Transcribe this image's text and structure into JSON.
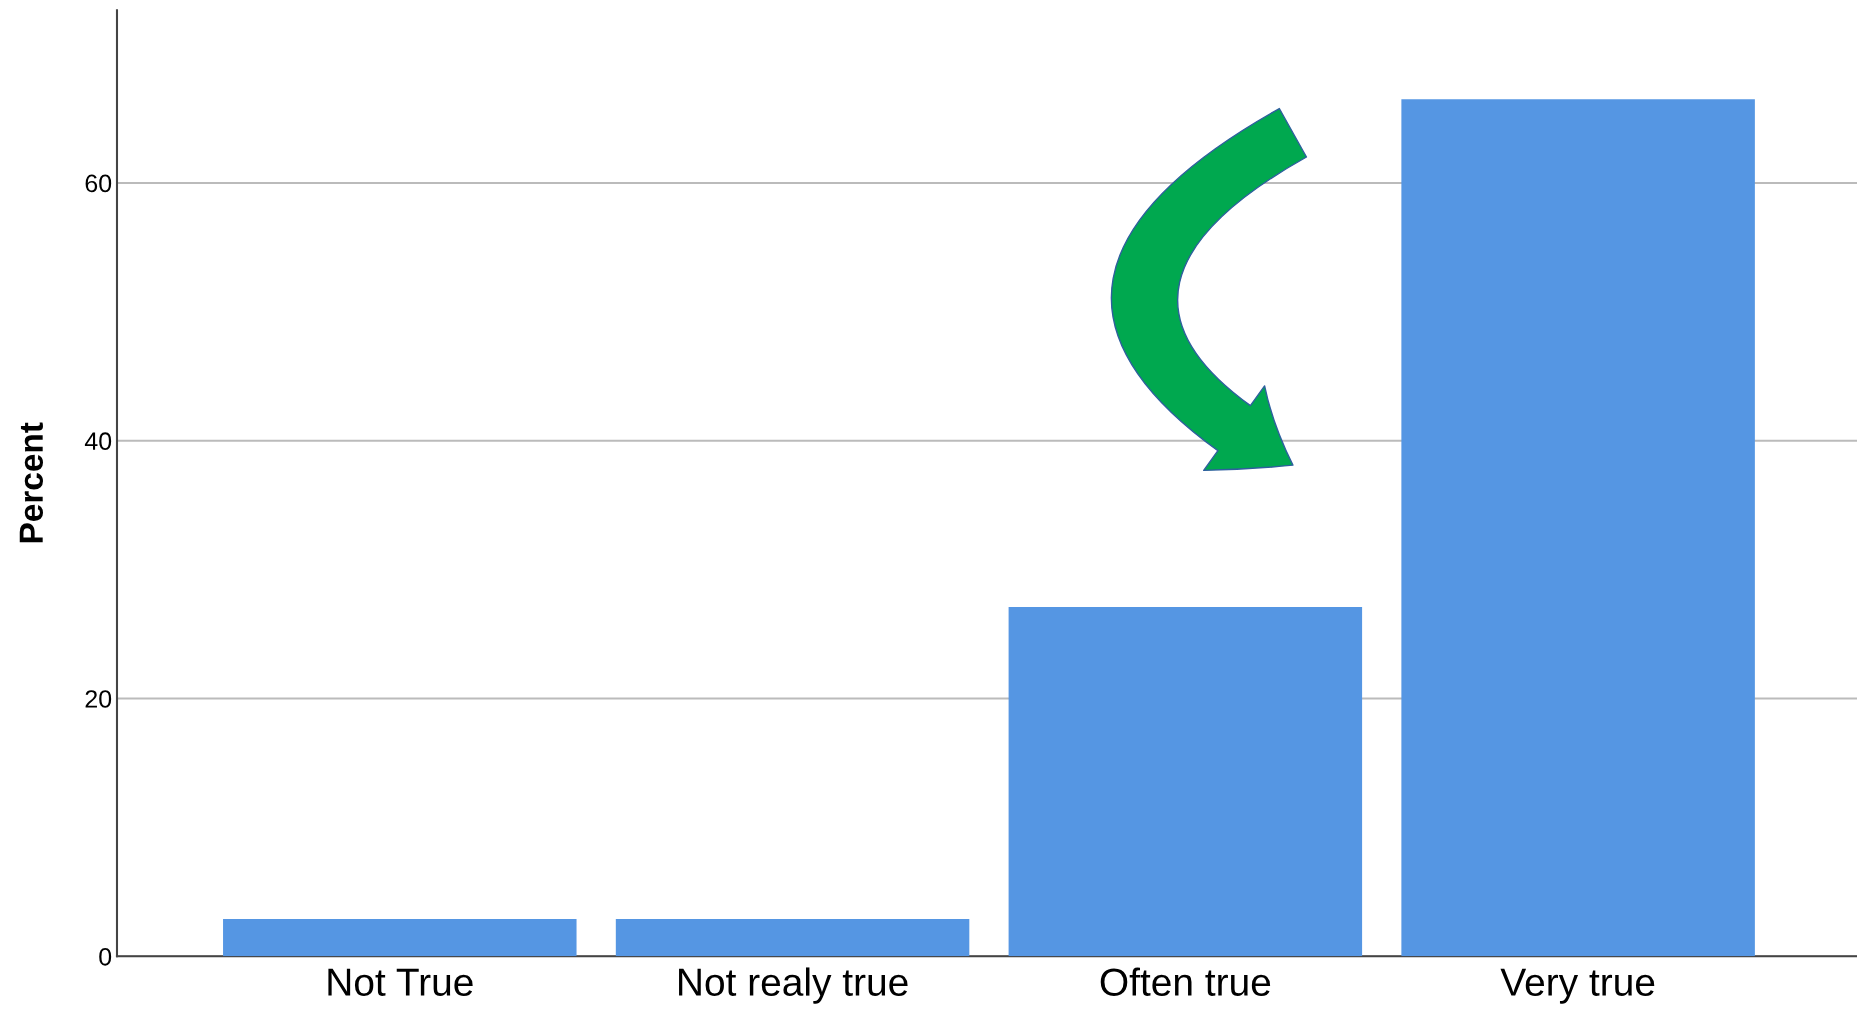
{
  "chart_data": {
    "type": "bar",
    "ylabel": "Percent",
    "categories": [
      "Not True",
      "Not realy true",
      "Often true",
      "Very true"
    ],
    "values": [
      2.9,
      2.9,
      27.1,
      66.5
    ],
    "color": "#5596e3",
    "ylim": [
      0,
      73.4
    ],
    "yticks": [
      0,
      20,
      40,
      60
    ],
    "grid": "y"
  }
}
